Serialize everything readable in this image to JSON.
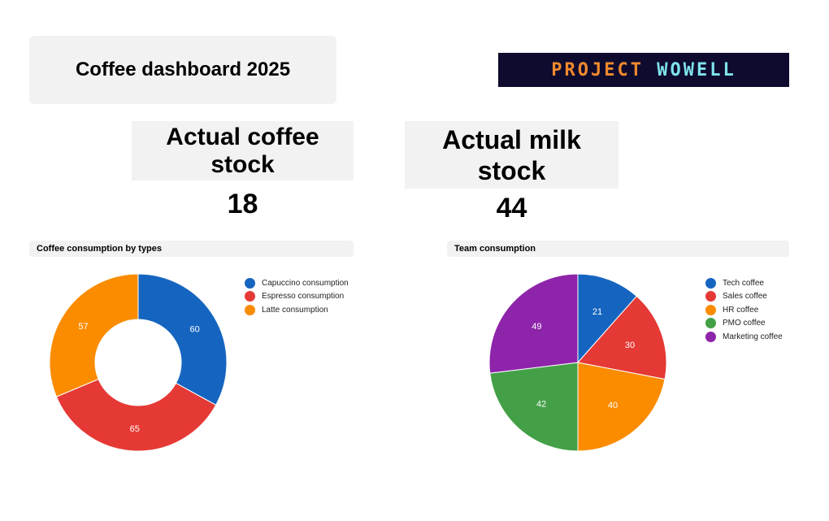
{
  "header": {
    "title": "Coffee dashboard 2025",
    "logo_text": "PROJECT WOWELL"
  },
  "kpis": [
    {
      "label": "Actual coffee stock",
      "value": "18"
    },
    {
      "label": "Actual milk stock",
      "value": "44"
    }
  ],
  "chart_data": [
    {
      "type": "pie",
      "donut": true,
      "title": "Coffee consumption by types",
      "legend_position": "right",
      "categories": [
        "Capuccino consumption",
        "Espresso consumption",
        "Latte consumption"
      ],
      "values": [
        60,
        65,
        57
      ],
      "colors": [
        "#1565c0",
        "#e53935",
        "#fb8c00"
      ]
    },
    {
      "type": "pie",
      "donut": false,
      "title": "Team consumption",
      "legend_position": "right",
      "categories": [
        "Tech coffee",
        "Sales coffee",
        "HR coffee",
        "PMO coffee",
        "Marketing coffee"
      ],
      "values": [
        21,
        30,
        40,
        42,
        49
      ],
      "colors": [
        "#1565c0",
        "#e53935",
        "#fb8c00",
        "#43a047",
        "#8e24aa"
      ]
    }
  ]
}
